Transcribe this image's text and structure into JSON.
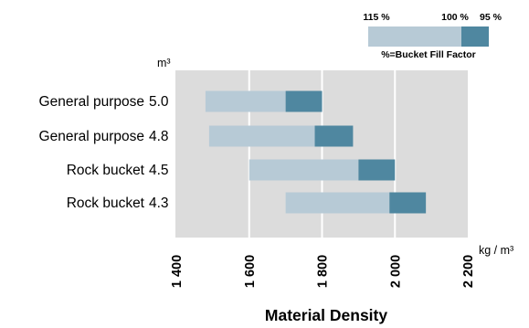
{
  "chart_data": {
    "type": "bar",
    "subtype": "floating-range",
    "xlabel": "Material Density",
    "x_unit": "kg / m³",
    "y_unit": "m³",
    "xlim": [
      1400,
      2200
    ],
    "x_ticks": [
      1400,
      1600,
      1800,
      2000,
      2200
    ],
    "x_tick_labels": [
      "1 400",
      "1 600",
      "1 800",
      "2 000",
      "2 200"
    ],
    "grid": true,
    "colors": {
      "light": "#b7cad6",
      "dark": "#4f87a0",
      "plot_bg": "#dcdcdc",
      "grid": "#ffffff"
    },
    "rows": [
      {
        "name": "General purpose",
        "size": "5.0",
        "start": 1480,
        "split": 1700,
        "end": 1800
      },
      {
        "name": "General purpose",
        "size": "4.8",
        "start": 1490,
        "split": 1780,
        "end": 1885
      },
      {
        "name": "Rock bucket",
        "size": "4.5",
        "start": 1600,
        "split": 1900,
        "end": 2000
      },
      {
        "name": "Rock bucket",
        "size": "4.3",
        "start": 1700,
        "split": 1985,
        "end": 2085
      }
    ],
    "legend": {
      "position": "top-right",
      "labels": [
        "115 %",
        "100 %",
        "95 %"
      ],
      "caption": "%=Bucket Fill Factor"
    }
  }
}
